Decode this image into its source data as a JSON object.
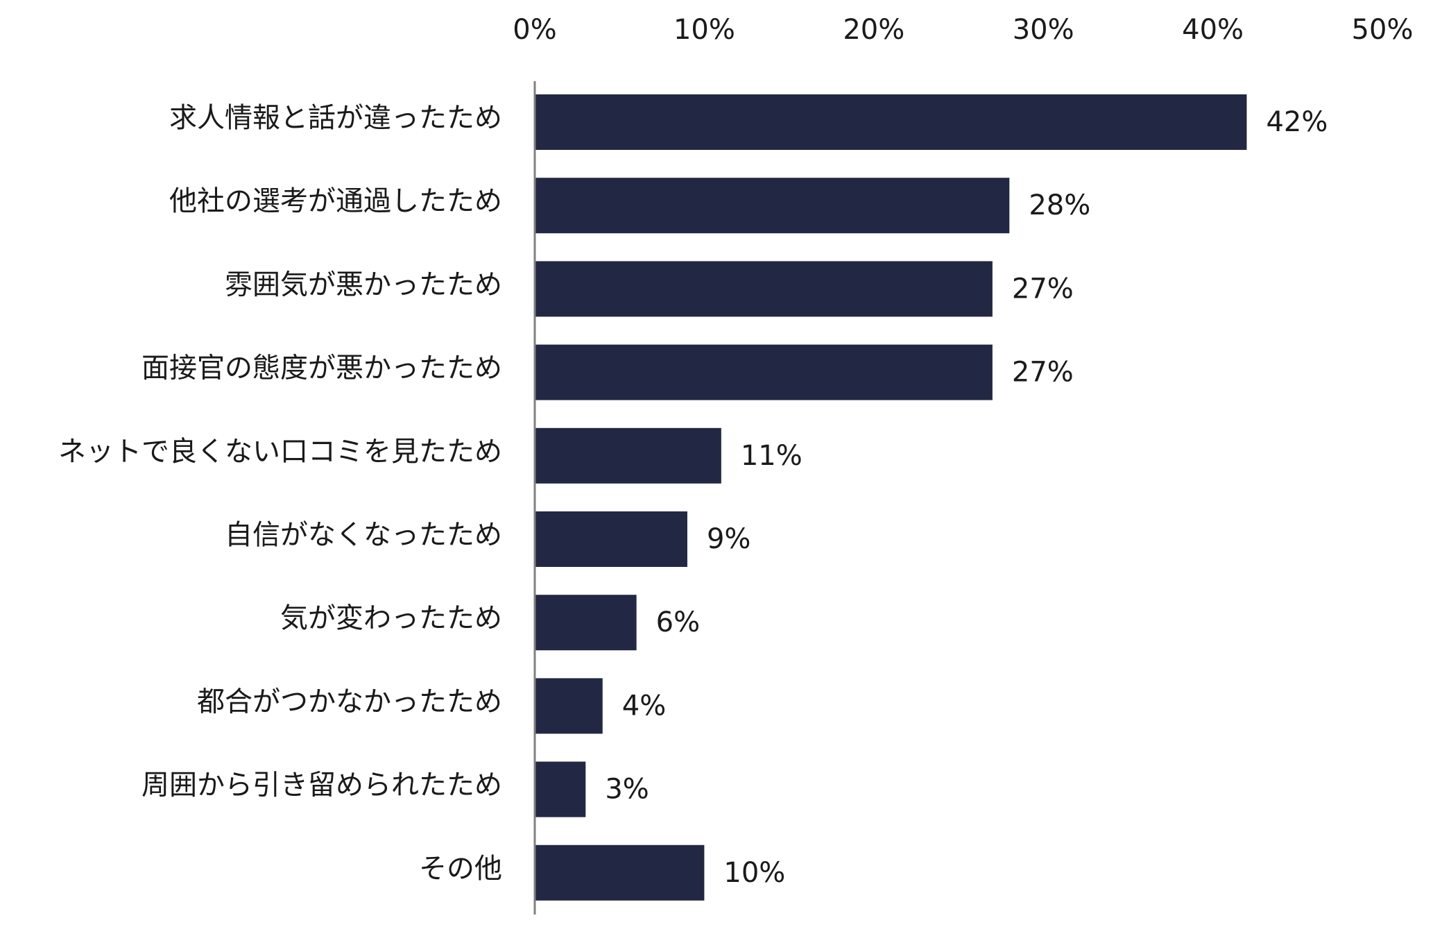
{
  "chart_data": {
    "type": "bar",
    "orientation": "horizontal",
    "title": "",
    "xlabel": "",
    "ylabel": "",
    "xlim": [
      0,
      50
    ],
    "x_ticks": [
      0,
      10,
      20,
      30,
      40,
      50
    ],
    "x_tick_labels": [
      "0%",
      "10%",
      "20%",
      "30%",
      "40%",
      "50%"
    ],
    "x_axis_position": "top",
    "grid": false,
    "legend": "none",
    "bar_color": "#222843",
    "axis_color": "#808080",
    "categories": [
      "求人情報と話が違ったため",
      "他社の選考が通過したため",
      "雰囲気が悪かったため",
      "面接官の態度が悪かったため",
      "ネットで良くない口コミを見たため",
      "自信がなくなったため",
      "気が変わったため",
      "都合がつかなかったため",
      "周囲から引き留められたため",
      "その他"
    ],
    "values": [
      42,
      28,
      27,
      27,
      11,
      9,
      6,
      4,
      3,
      10
    ],
    "value_labels": [
      "42%",
      "28%",
      "27%",
      "27%",
      "11%",
      "9%",
      "6%",
      "4%",
      "3%",
      "10%"
    ]
  }
}
